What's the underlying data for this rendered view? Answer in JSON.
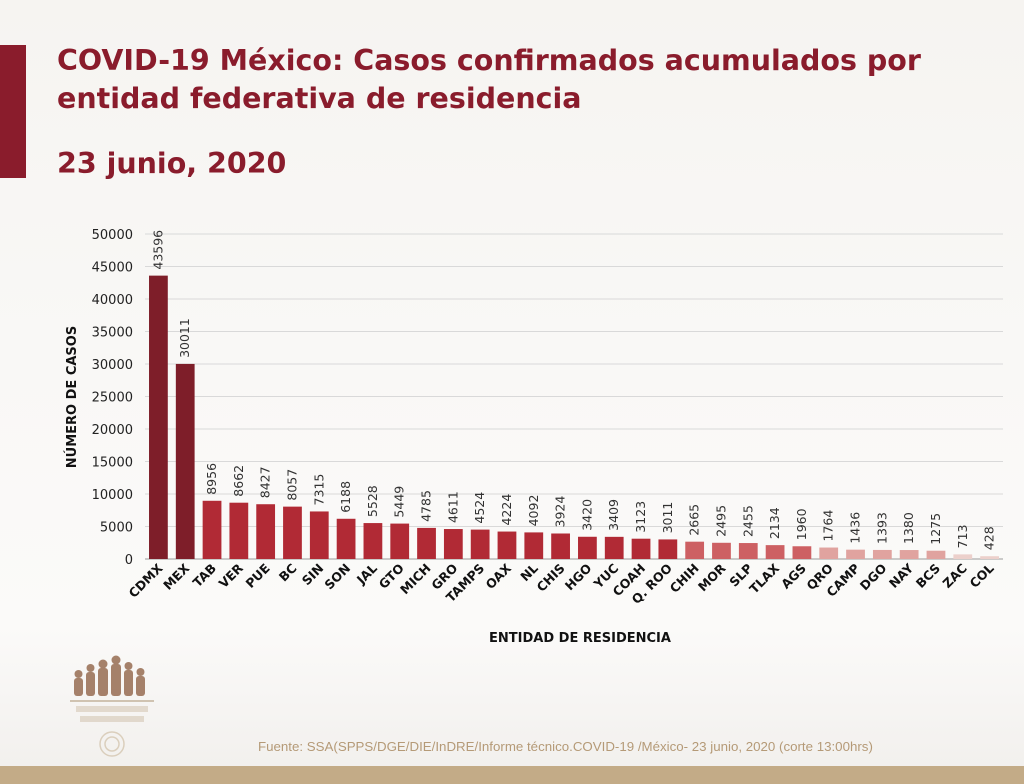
{
  "slide": {
    "title": "COVID-19 México: Casos confirmados acumulados por entidad federativa de residencia",
    "date": "23 junio, 2020",
    "source": "Fuente: SSA(SPPS/DGE/DIE/InDRE/Informe técnico.COVID-19 /México- 23 junio, 2020 (corte 13:00hrs)",
    "accent_color": "#8a1c2c",
    "footer_color": "#c3ab87"
  },
  "chart_data": {
    "type": "bar",
    "xlabel": "ENTIDAD DE RESIDENCIA",
    "ylabel": "NÚMERO DE CASOS",
    "ylim": [
      0,
      50000
    ],
    "yticks": [
      0,
      5000,
      10000,
      15000,
      20000,
      25000,
      30000,
      35000,
      40000,
      45000,
      50000
    ],
    "grid": true,
    "legend": "none",
    "categories": [
      "CDMX",
      "MEX",
      "TAB",
      "VER",
      "PUE",
      "BC",
      "SIN",
      "SON",
      "JAL",
      "GTO",
      "MICH",
      "GRO",
      "TAMPS",
      "OAX",
      "NL",
      "CHIS",
      "HGO",
      "YUC",
      "COAH",
      "Q. ROO",
      "CHIH",
      "MOR",
      "SLP",
      "TLAX",
      "AGS",
      "QRO",
      "CAMP",
      "DGO",
      "NAY",
      "BCS",
      "ZAC",
      "COL"
    ],
    "values": [
      43596,
      30011,
      8956,
      8662,
      8427,
      8057,
      7315,
      6188,
      5528,
      5449,
      4785,
      4611,
      4524,
      4224,
      4092,
      3924,
      3420,
      3409,
      3123,
      3011,
      2665,
      2495,
      2455,
      2134,
      1960,
      1764,
      1436,
      1393,
      1380,
      1275,
      713,
      428
    ],
    "colors": {
      "dark": "#7e1e29",
      "medium": "#b12a35",
      "light": "#cd6063",
      "pale": "#e0a39f",
      "faint": "#ecd0cb"
    }
  }
}
